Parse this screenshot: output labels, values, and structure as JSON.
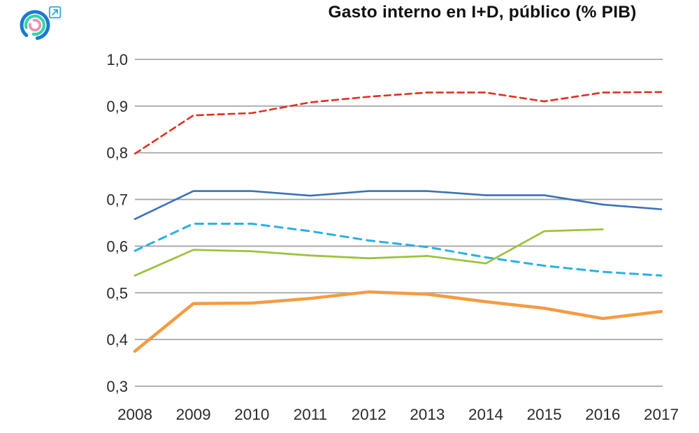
{
  "header": {
    "title": "Gasto interno en I+D, público (% PIB)",
    "logo": {
      "outer_arc_color": "#1e78d2",
      "middle_arc_color": "#2fd9a5",
      "inner_arc_color": "#f290b2",
      "link_icon_color": "#2ba7df"
    }
  },
  "chart_data": {
    "type": "line",
    "title": "Gasto interno en I+D, público (% PIB)",
    "xlabel": "",
    "ylabel": "",
    "categories": [
      "2008",
      "2009",
      "2010",
      "2011",
      "2012",
      "2013",
      "2014",
      "2015",
      "2016",
      "2017"
    ],
    "ylim": [
      0.3,
      1.0
    ],
    "y_ticks": [
      {
        "value": 1.0,
        "label": "1,0"
      },
      {
        "value": 0.9,
        "label": "0,9"
      },
      {
        "value": 0.8,
        "label": "0,8"
      },
      {
        "value": 0.7,
        "label": "0,7"
      },
      {
        "value": 0.6,
        "label": "0,6"
      },
      {
        "value": 0.5,
        "label": "0,5"
      },
      {
        "value": 0.4,
        "label": "0,4"
      },
      {
        "value": 0.3,
        "label": "0,3"
      }
    ],
    "grid": "horizontal-only",
    "grid_color": "#a6a6a6",
    "tick_label_color": "#2b2b2b",
    "legend": "none",
    "series": [
      {
        "name": "red-dashed-line",
        "color": "#e0301e",
        "style": "dashed",
        "width": 2.6,
        "values": [
          0.798,
          0.88,
          0.885,
          0.908,
          0.92,
          0.929,
          0.929,
          0.91,
          0.929,
          0.93
        ]
      },
      {
        "name": "dark-blue-solid-line",
        "color": "#3a72b8",
        "style": "solid",
        "width": 2.6,
        "values": [
          0.658,
          0.718,
          0.718,
          0.708,
          0.718,
          0.718,
          0.709,
          0.709,
          0.689,
          0.679
        ]
      },
      {
        "name": "light-blue-dashed-line",
        "color": "#29b0e6",
        "style": "dashed",
        "width": 3,
        "values": [
          0.59,
          0.648,
          0.648,
          0.632,
          0.612,
          0.598,
          0.576,
          0.558,
          0.545,
          0.537
        ]
      },
      {
        "name": "green-solid-line",
        "color": "#9dc33b",
        "style": "solid",
        "width": 2.8,
        "values": [
          0.537,
          0.592,
          0.589,
          0.58,
          0.574,
          0.579,
          0.563,
          0.632,
          0.636,
          null
        ]
      },
      {
        "name": "orange-solid-thick-line",
        "color": "#f59b42",
        "style": "solid",
        "width": 4.5,
        "values": [
          0.375,
          0.477,
          0.478,
          0.488,
          0.502,
          0.497,
          0.481,
          0.467,
          0.445,
          0.46
        ]
      }
    ]
  }
}
